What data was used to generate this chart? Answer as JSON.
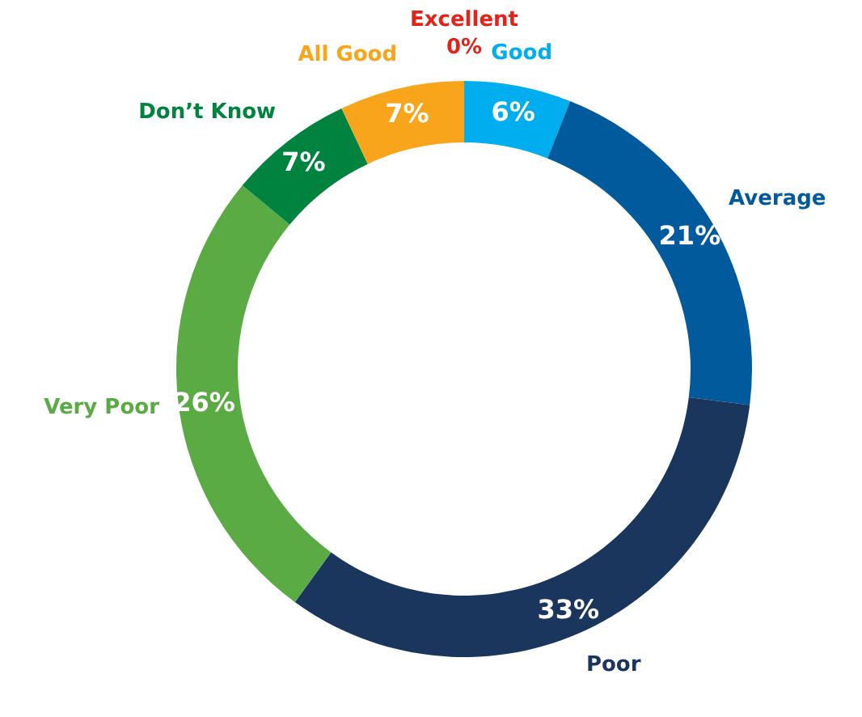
{
  "chart_data": {
    "type": "donut",
    "categories": [
      "Excellent",
      "Good",
      "Average",
      "Poor",
      "Very Poor",
      "Don’t Know",
      "All Good"
    ],
    "values": [
      0,
      6,
      21,
      33,
      26,
      7,
      7
    ],
    "value_labels": [
      "0%",
      "6%",
      "21%",
      "33%",
      "26%",
      "7%",
      "7%"
    ],
    "colors": [
      "#e2231a",
      "#00aeef",
      "#005a9c",
      "#1b365d",
      "#5bab44",
      "#00833e",
      "#f8a51b"
    ]
  }
}
